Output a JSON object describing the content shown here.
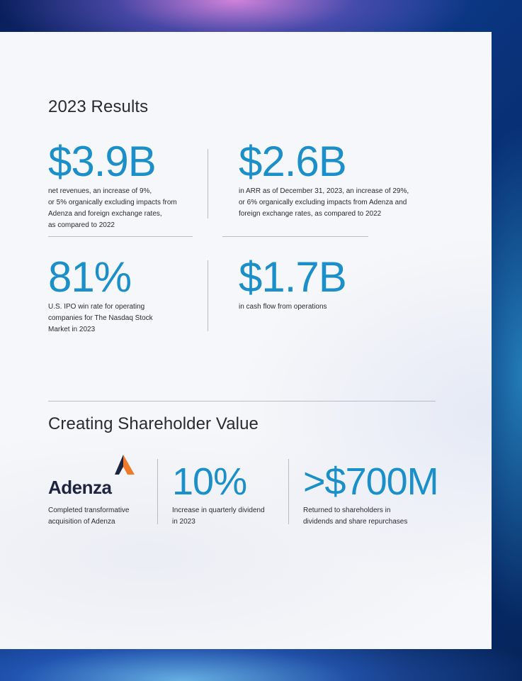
{
  "results": {
    "title": "2023 Results",
    "stats": [
      {
        "value": "$3.9B",
        "desc_lines": [
          "net revenues, an increase of 9%,",
          "or 5% organically excluding impacts from",
          "Adenza and foreign exchange rates,",
          "as compared to 2022"
        ]
      },
      {
        "value": "$2.6B",
        "desc_lines": [
          "in ARR as of December 31, 2023, an increase of 29%,",
          "or 6% organically excluding impacts from Adenza and",
          "foreign exchange rates, as compared to 2022"
        ]
      },
      {
        "value": "81%",
        "desc_lines": [
          "U.S. IPO win rate for operating",
          "companies for The Nasdaq Stock",
          "Market in 2023"
        ]
      },
      {
        "value": "$1.7B",
        "desc_lines": [
          "in cash flow from operations"
        ]
      }
    ]
  },
  "shareholder": {
    "title": "Creating Shareholder Value",
    "logo_text": "Adenza",
    "logo_desc_lines": [
      "Completed transformative",
      "acquisition of Adenza"
    ],
    "stats": [
      {
        "value": "10%",
        "desc_lines": [
          "Increase in quarterly dividend",
          "in 2023"
        ]
      },
      {
        "value": ">$700M",
        "desc_lines": [
          "Returned to shareholders in",
          "dividends and share repurchases"
        ]
      }
    ]
  },
  "colors": {
    "accent": "#1b8fc9",
    "text": "#2a2a33",
    "logo_orange": "#f07a2a",
    "logo_dark": "#1c2440"
  },
  "icons": [
    "adenza-logo-mark"
  ]
}
